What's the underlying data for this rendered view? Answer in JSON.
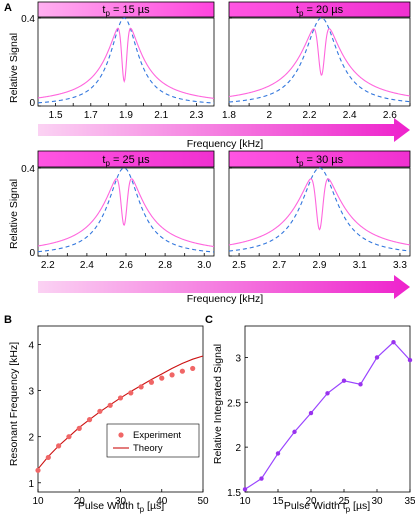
{
  "colors": {
    "theory_magenta": "#ff66dd",
    "experiment_blue": "#3377dd",
    "header_fill": "#ff44dd",
    "arrow_dark": "#ee22cc",
    "arrow_light": "#fbd2f3",
    "resonance_point": "#f06666",
    "resonance_line": "#cc1111",
    "signal_line": "#9944ff",
    "signal_point": "#9933ee"
  },
  "panel_A": {
    "letter": "A",
    "ylabel": "Relative Signal",
    "xlabel": "Frequency [kHz]",
    "y_ticks": [
      "0",
      "0.4"
    ]
  },
  "panel_B": {
    "letter": "B",
    "xlabel": "Pulse Width t",
    "xlabel_sub": "p",
    "xlabel_unit": " [µs]",
    "ylabel": "Resonant Frequency [kHz]",
    "legend": [
      "Experiment",
      "Theory"
    ]
  },
  "panel_C": {
    "letter": "C",
    "xlabel": "Pulse Width t",
    "xlabel_sub": "p",
    "xlabel_unit": " [µs]",
    "ylabel": "Relative Integrated Signal"
  },
  "chart_data": [
    {
      "type": "line",
      "panel": "A",
      "subplot": 1,
      "header_pre": "t",
      "header_sub": "p",
      "header_post": " = 15 µs",
      "xlim": [
        1.4,
        2.4
      ],
      "ylim": [
        0,
        0.4
      ],
      "x_ticks": [
        1.5,
        1.6,
        1.7,
        1.8,
        1.9,
        2.0,
        2.1,
        2.2,
        2.3
      ],
      "x_tick_labels": [
        "1.5",
        "1.7",
        "1.9",
        "2.1",
        "2.3"
      ],
      "x_tick_labels_at": [
        1.5,
        1.7,
        1.9,
        2.1,
        2.3
      ],
      "center": 1.89,
      "lorentz_width": 0.095,
      "dip_depth": 0.72,
      "dip_width": 0.02,
      "series": [
        {
          "name": "",
          "values": [
            [
              1.4,
              0.042
            ],
            [
              1.5,
              0.063
            ],
            [
              1.6,
              0.103
            ],
            [
              1.7,
              0.178
            ],
            [
              1.8,
              0.33
            ],
            [
              1.86,
              0.4
            ],
            [
              1.89,
              0.12
            ],
            [
              1.92,
              0.39
            ],
            [
              2.0,
              0.29
            ],
            [
              2.1,
              0.16
            ],
            [
              2.2,
              0.098
            ],
            [
              2.3,
              0.066
            ],
            [
              2.4,
              0.046
            ]
          ]
        },
        {
          "name": "",
          "values": [
            [
              1.4,
              0.02
            ],
            [
              1.5,
              0.031
            ],
            [
              1.6,
              0.052
            ],
            [
              1.7,
              0.093
            ],
            [
              1.8,
              0.212
            ],
            [
              1.89,
              0.4
            ],
            [
              2.0,
              0.18
            ],
            [
              2.1,
              0.081
            ],
            [
              2.2,
              0.047
            ],
            [
              2.3,
              0.031
            ],
            [
              2.4,
              0.022
            ]
          ]
        }
      ]
    },
    {
      "type": "line",
      "panel": "A",
      "subplot": 2,
      "header_pre": "t",
      "header_sub": "p",
      "header_post": " = 20 µs",
      "xlim": [
        1.8,
        2.7
      ],
      "ylim": [
        0,
        0.4
      ],
      "x_ticks": [
        1.8,
        1.9,
        2.0,
        2.1,
        2.2,
        2.3,
        2.4,
        2.5,
        2.6,
        2.7
      ],
      "x_tick_labels": [
        "1.8",
        "2",
        "2.2",
        "2.4",
        "2.6"
      ],
      "x_tick_labels_at": [
        1.8,
        2.0,
        2.2,
        2.4,
        2.6
      ],
      "center": 2.26,
      "lorentz_width": 0.1,
      "dip_depth": 0.65,
      "dip_width": 0.022,
      "series": [
        {
          "name": "",
          "values": [
            [
              1.8,
              0.03
            ],
            [
              2.0,
              0.08
            ],
            [
              2.1,
              0.14
            ],
            [
              2.2,
              0.29
            ],
            [
              2.26,
              0.1
            ],
            [
              2.32,
              0.28
            ],
            [
              2.4,
              0.16
            ],
            [
              2.5,
              0.08
            ],
            [
              2.6,
              0.05
            ],
            [
              2.7,
              0.032
            ]
          ]
        },
        {
          "name": "",
          "values": [
            [
              1.8,
              0.02
            ],
            [
              2.0,
              0.05
            ],
            [
              2.1,
              0.1
            ],
            [
              2.2,
              0.3
            ],
            [
              2.26,
              0.4
            ],
            [
              2.35,
              0.22
            ],
            [
              2.5,
              0.06
            ],
            [
              2.7,
              0.02
            ]
          ]
        }
      ]
    },
    {
      "type": "line",
      "panel": "A",
      "subplot": 3,
      "header_pre": "t",
      "header_sub": "p",
      "header_post": " = 25 µs",
      "xlim": [
        2.15,
        3.05
      ],
      "ylim": [
        0,
        0.4
      ],
      "x_ticks": [
        2.2,
        2.3,
        2.4,
        2.5,
        2.6,
        2.7,
        2.8,
        2.9,
        3.0
      ],
      "x_tick_labels": [
        "2.2",
        "2.4",
        "2.6",
        "2.8",
        "3.0"
      ],
      "x_tick_labels_at": [
        2.2,
        2.4,
        2.6,
        2.8,
        3.0
      ],
      "center": 2.59,
      "lorentz_width": 0.1,
      "dip_depth": 0.65,
      "dip_width": 0.022,
      "series": [
        {
          "name": "",
          "values": [
            [
              2.15,
              0.04
            ],
            [
              2.3,
              0.08
            ],
            [
              2.45,
              0.2
            ],
            [
              2.54,
              0.24
            ],
            [
              2.59,
              0.08
            ],
            [
              2.64,
              0.24
            ],
            [
              2.75,
              0.18
            ],
            [
              2.9,
              0.08
            ],
            [
              3.05,
              0.04
            ]
          ]
        },
        {
          "name": "",
          "values": [
            [
              2.15,
              0.02
            ],
            [
              2.3,
              0.05
            ],
            [
              2.45,
              0.15
            ],
            [
              2.59,
              0.4
            ],
            [
              2.75,
              0.15
            ],
            [
              2.9,
              0.06
            ],
            [
              3.05,
              0.02
            ]
          ]
        }
      ]
    },
    {
      "type": "line",
      "panel": "A",
      "subplot": 4,
      "header_pre": "t",
      "header_sub": "p",
      "header_post": " = 30 µs",
      "xlim": [
        2.45,
        3.35
      ],
      "ylim": [
        0,
        0.4
      ],
      "x_ticks": [
        2.5,
        2.6,
        2.7,
        2.8,
        2.9,
        3.0,
        3.1,
        3.2,
        3.3
      ],
      "x_tick_labels": [
        "2.5",
        "2.7",
        "2.9",
        "3.1",
        "3.3"
      ],
      "x_tick_labels_at": [
        2.5,
        2.7,
        2.9,
        3.1,
        3.3
      ],
      "center": 2.9,
      "lorentz_width": 0.11,
      "dip_depth": 0.7,
      "dip_width": 0.024,
      "series": [
        {
          "name": "",
          "values": [
            [
              2.45,
              0.04
            ],
            [
              2.6,
              0.08
            ],
            [
              2.75,
              0.18
            ],
            [
              2.84,
              0.22
            ],
            [
              2.9,
              0.08
            ],
            [
              2.96,
              0.22
            ],
            [
              3.1,
              0.14
            ],
            [
              3.2,
              0.08
            ],
            [
              3.35,
              0.04
            ]
          ]
        },
        {
          "name": "",
          "values": [
            [
              2.45,
              0.02
            ],
            [
              2.6,
              0.05
            ],
            [
              2.75,
              0.14
            ],
            [
              2.9,
              0.4
            ],
            [
              3.05,
              0.14
            ],
            [
              3.2,
              0.05
            ],
            [
              3.35,
              0.02
            ]
          ]
        }
      ]
    },
    {
      "type": "scatter",
      "panel": "B",
      "xlim": [
        10,
        50
      ],
      "ylim": [
        0.8,
        4.4
      ],
      "x_ticks": [
        10,
        20,
        30,
        40,
        50
      ],
      "y_ticks": [
        1,
        2,
        3,
        4
      ],
      "series": [
        {
          "name": "Experiment",
          "x": [
            10,
            12.5,
            15,
            17.5,
            20,
            22.5,
            25,
            27.5,
            30,
            32.5,
            35,
            37.5,
            40,
            42.5,
            45,
            47.5
          ],
          "values": [
            1.27,
            1.55,
            1.8,
            2.0,
            2.18,
            2.37,
            2.55,
            2.68,
            2.84,
            2.95,
            3.08,
            3.18,
            3.27,
            3.34,
            3.42,
            3.48
          ]
        },
        {
          "name": "Theory",
          "x": [
            10,
            12.5,
            15,
            17.5,
            20,
            22.5,
            25,
            27.5,
            30,
            32.5,
            35,
            37.5,
            40,
            42.5,
            45,
            47.5,
            50
          ],
          "values": [
            1.3,
            1.57,
            1.8,
            2.0,
            2.2,
            2.37,
            2.54,
            2.69,
            2.84,
            2.98,
            3.11,
            3.24,
            3.36,
            3.48,
            3.59,
            3.68,
            3.75
          ]
        }
      ]
    },
    {
      "type": "line",
      "panel": "C",
      "xlim": [
        10,
        35
      ],
      "ylim": [
        1.5,
        3.35
      ],
      "x_ticks": [
        10,
        15,
        20,
        25,
        30,
        35
      ],
      "y_ticks": [
        1.5,
        2.0,
        2.5,
        3.0
      ],
      "y_tick_labels": [
        "1.5",
        "2",
        "2.5",
        "3"
      ],
      "series": [
        {
          "name": "",
          "x": [
            10,
            12.5,
            15,
            17.5,
            20,
            22.5,
            25,
            27.5,
            30,
            32.5,
            35
          ],
          "values": [
            1.53,
            1.65,
            1.93,
            2.17,
            2.38,
            2.6,
            2.74,
            2.7,
            3.0,
            3.17,
            2.97
          ]
        }
      ]
    }
  ]
}
